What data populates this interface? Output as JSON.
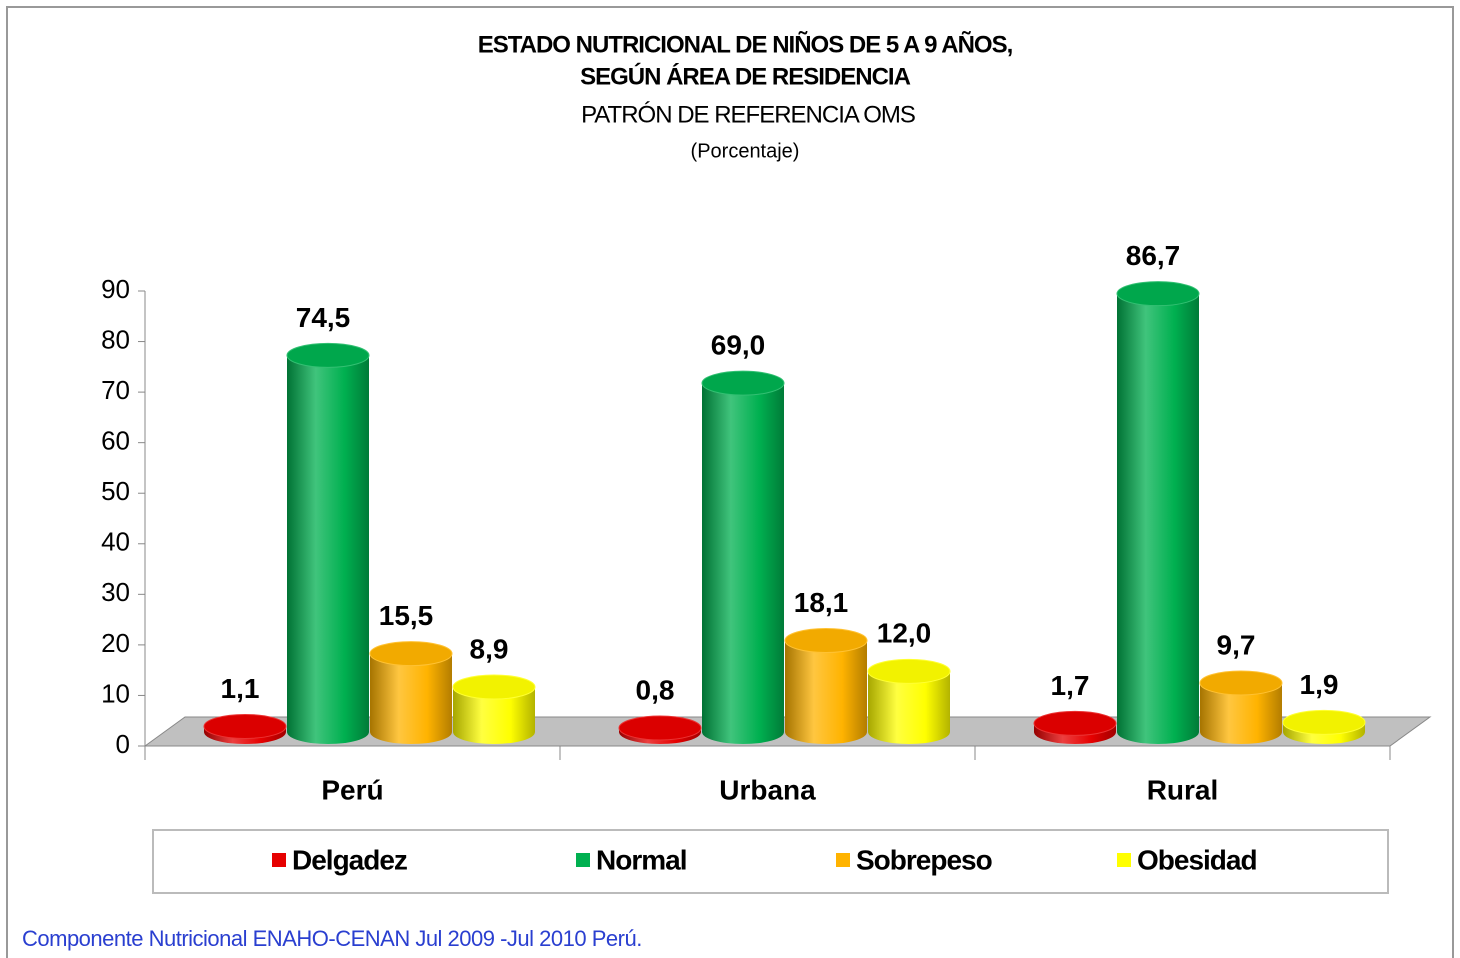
{
  "chart_data": {
    "type": "bar3d",
    "title": "ESTADO NUTRICIONAL DE NIÑOS DE 5 A 9 AÑOS,",
    "title_line2": "SEGÚN ÁREA DE RESIDENCIA",
    "subtitle": "PATRÓN DE REFERENCIA OMS",
    "unit_note": "(Porcentaje)",
    "categories": [
      "Perú",
      "Urbana",
      "Rural"
    ],
    "series": [
      {
        "name": "Delgadez",
        "color": "#e60000",
        "values": [
          1.1,
          0.8,
          1.7
        ],
        "value_labels": [
          "1,1",
          "0,8",
          "1,7"
        ]
      },
      {
        "name": "Normal",
        "color": "#00b050",
        "values": [
          74.5,
          69.0,
          86.7
        ],
        "value_labels": [
          "74,5",
          "69,0",
          "86,7"
        ]
      },
      {
        "name": "Sobrepeso",
        "color": "#ffb300",
        "values": [
          15.5,
          18.1,
          9.7
        ],
        "value_labels": [
          "15,5",
          "18,1",
          "9,7"
        ]
      },
      {
        "name": "Obesidad",
        "color": "#ffff00",
        "values": [
          8.9,
          12.0,
          1.9
        ],
        "value_labels": [
          "8,9",
          "12,0",
          "1,9"
        ]
      }
    ],
    "ylim": [
      0,
      90
    ],
    "yticks": [
      0,
      10,
      20,
      30,
      40,
      50,
      60,
      70,
      80,
      90
    ],
    "legend": "bottom",
    "source": "Componente Nutricional ENAHO-CENAN Jul 2009 -Jul 2010 Perú."
  }
}
